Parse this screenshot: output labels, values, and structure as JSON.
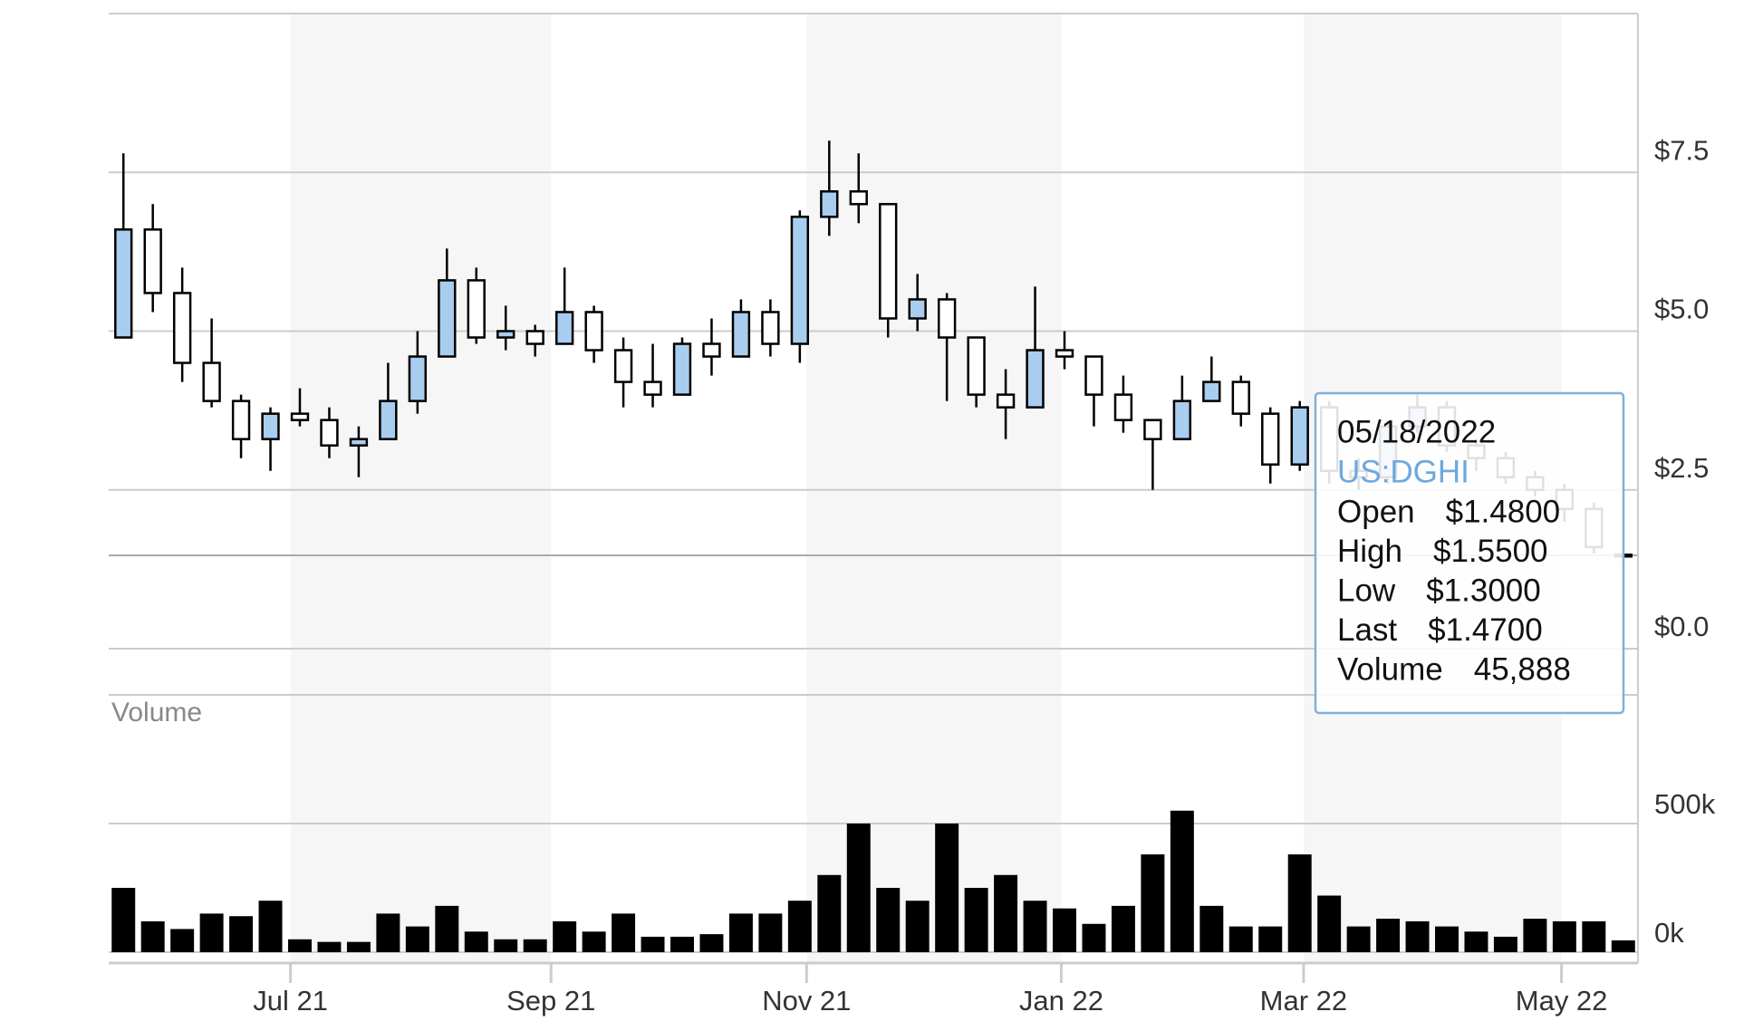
{
  "chart_data": {
    "type": "candlestick",
    "xlim": [
      0,
      52
    ],
    "xticks": [
      {
        "value": 6.18,
        "label": "Jul 21"
      },
      {
        "value": 15.04,
        "label": "Sep 21"
      },
      {
        "value": 23.73,
        "label": "Nov 21"
      },
      {
        "value": 32.39,
        "label": "Jan 22"
      },
      {
        "value": 40.63,
        "label": "Mar 22"
      },
      {
        "value": 49.4,
        "label": "May 22"
      }
    ],
    "ylim": [
      0,
      10
    ],
    "yticks": [
      {
        "value": 0,
        "label": "$0.0"
      },
      {
        "value": 2.5,
        "label": "$2.5"
      },
      {
        "value": 5,
        "label": "$5.0"
      },
      {
        "value": 7.5,
        "label": "$7.5"
      }
    ],
    "grid": true,
    "up_color": "#a9cdee",
    "down_color": "#ffffff",
    "open": [
      4.9,
      6.6,
      5.6,
      4.5,
      3.9,
      3.3,
      3.7,
      3.6,
      3.2,
      3.3,
      3.9,
      4.6,
      5.8,
      4.9,
      5.0,
      4.8,
      5.3,
      4.7,
      4.2,
      4.0,
      4.8,
      4.6,
      5.3,
      4.8,
      6.8,
      7.2,
      7.0,
      5.2,
      5.5,
      4.9,
      4.0,
      3.8,
      4.7,
      4.6,
      4.0,
      3.6,
      3.3,
      3.9,
      4.2,
      3.7,
      2.9,
      3.8,
      2.8,
      2.7,
      3.5,
      3.8,
      3.2,
      3.0,
      2.7,
      2.5,
      2.2,
      1.48
    ],
    "high": [
      7.8,
      7.0,
      6.0,
      5.2,
      4.0,
      3.8,
      4.1,
      3.8,
      3.5,
      4.5,
      5.0,
      6.3,
      6.0,
      5.4,
      5.1,
      6.0,
      5.4,
      4.9,
      4.8,
      4.9,
      5.2,
      5.5,
      5.5,
      6.9,
      8.0,
      7.8,
      7.0,
      5.9,
      5.6,
      4.9,
      4.4,
      5.7,
      5.0,
      4.6,
      4.3,
      3.6,
      4.3,
      4.6,
      4.3,
      3.8,
      3.9,
      3.9,
      3.0,
      3.6,
      4.0,
      3.9,
      3.3,
      3.1,
      2.8,
      2.6,
      2.3,
      1.55
    ],
    "low": [
      4.9,
      5.3,
      4.2,
      3.8,
      3.0,
      2.8,
      3.5,
      3.0,
      2.7,
      3.3,
      3.7,
      4.6,
      4.8,
      4.7,
      4.6,
      4.8,
      4.5,
      3.8,
      3.8,
      4.0,
      4.3,
      4.6,
      4.6,
      4.5,
      6.5,
      6.7,
      4.9,
      5.0,
      3.9,
      3.8,
      3.3,
      3.8,
      4.4,
      3.5,
      3.4,
      2.5,
      3.3,
      3.9,
      3.5,
      2.6,
      2.8,
      2.6,
      2.5,
      2.6,
      3.4,
      3.1,
      2.8,
      2.6,
      2.4,
      2.0,
      1.5,
      1.3
    ],
    "close": [
      6.6,
      5.6,
      4.5,
      3.9,
      3.3,
      3.7,
      3.6,
      3.2,
      3.3,
      3.9,
      4.6,
      5.8,
      4.9,
      5.0,
      4.8,
      5.3,
      4.7,
      4.2,
      4.0,
      4.8,
      4.6,
      5.3,
      4.8,
      6.8,
      7.2,
      7.0,
      5.2,
      5.5,
      4.9,
      4.0,
      3.8,
      4.7,
      4.6,
      4.0,
      3.6,
      3.3,
      3.9,
      4.2,
      3.7,
      2.9,
      3.8,
      2.8,
      2.7,
      3.5,
      3.8,
      3.2,
      3.0,
      2.7,
      2.5,
      2.2,
      1.6,
      1.47
    ],
    "volume": {
      "label": "Volume",
      "ylim": [
        0,
        1000000
      ],
      "yticks": [
        {
          "value": 0,
          "label": "0k"
        },
        {
          "value": 500000,
          "label": "500k"
        }
      ],
      "color": "#000000",
      "values": [
        250000,
        120000,
        90000,
        150000,
        140000,
        200000,
        50000,
        40000,
        40000,
        150000,
        100000,
        180000,
        80000,
        50000,
        50000,
        120000,
        80000,
        150000,
        60000,
        60000,
        70000,
        150000,
        150000,
        200000,
        300000,
        500000,
        250000,
        200000,
        500000,
        250000,
        300000,
        200000,
        170000,
        110000,
        180000,
        380000,
        550000,
        180000,
        100000,
        100000,
        380000,
        220000,
        100000,
        130000,
        120000,
        100000,
        80000,
        60000,
        130000,
        120000,
        120000,
        45888
      ]
    },
    "tooltip": {
      "date": "05/18/2022",
      "symbol": "US:DGHI",
      "rows": [
        {
          "label": "Open",
          "value": "$1.4800"
        },
        {
          "label": "High",
          "value": "$1.5500"
        },
        {
          "label": "Low",
          "value": "$1.3000"
        },
        {
          "label": "Last",
          "value": "$1.4700"
        },
        {
          "label": "Volume",
          "value": "45,888"
        }
      ]
    }
  }
}
